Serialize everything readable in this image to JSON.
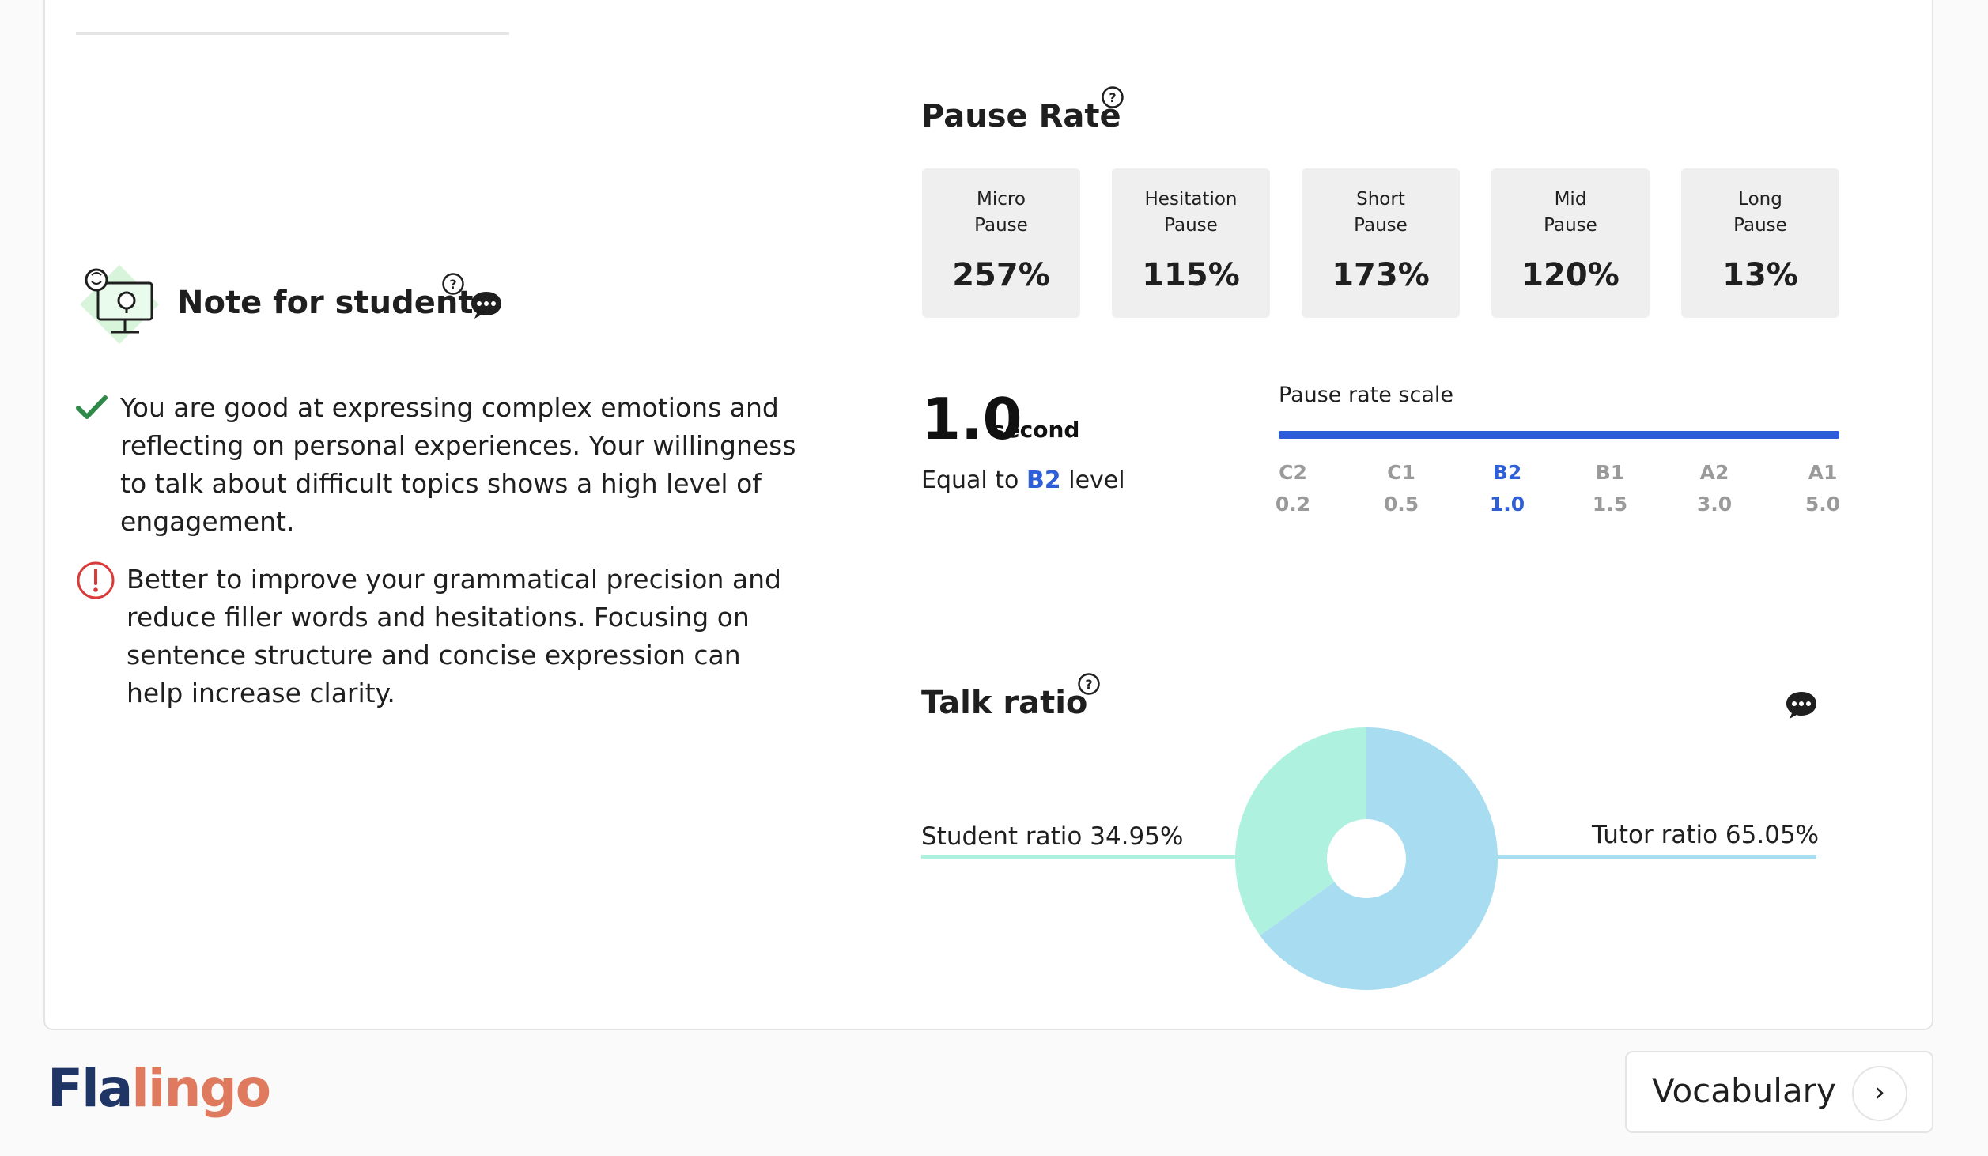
{
  "note": {
    "title": "Note for student",
    "items": [
      {
        "type": "positive",
        "icon": "check-icon",
        "text": "You are good at expressing complex emotions and reflecting on personal experiences. Your willingness to talk about difficult topics shows a high level of engagement."
      },
      {
        "type": "improvement",
        "icon": "alert-icon",
        "text": "Better to improve your grammatical precision and reduce filler words and hesitations. Focusing on sentence structure and concise expression can help increase clarity."
      }
    ]
  },
  "pause_rate": {
    "title": "Pause Rate",
    "boxes": [
      {
        "label": "Micro\nPause",
        "value": "257%"
      },
      {
        "label": "Hesitation\nPause",
        "value": "115%"
      },
      {
        "label": "Short\nPause",
        "value": "173%"
      },
      {
        "label": "Mid\nPause",
        "value": "120%"
      },
      {
        "label": "Long\nPause",
        "value": "13%"
      }
    ],
    "seconds_value": "1.0",
    "seconds_unit": "second",
    "equal_prefix": "Equal to",
    "equal_level": "B2",
    "equal_suffix": "level",
    "scale_label": "Pause rate scale",
    "scale": [
      {
        "level": "C2",
        "value": "0.2"
      },
      {
        "level": "C1",
        "value": "0.5"
      },
      {
        "level": "B2",
        "value": "1.0",
        "active": true
      },
      {
        "level": "B1",
        "value": "1.5"
      },
      {
        "level": "A2",
        "value": "3.0"
      },
      {
        "level": "A1",
        "value": "5.0"
      }
    ]
  },
  "talk_ratio": {
    "title": "Talk ratio",
    "student_label": "Student ratio 34.95%",
    "tutor_label": "Tutor ratio 65.05%",
    "student_pct": 34.95,
    "tutor_pct": 65.05,
    "colors": {
      "student": "#aef1df",
      "tutor": "#a8dcf1"
    }
  },
  "footer": {
    "logo_part1": "Fla",
    "logo_part2": "lingo",
    "next_button": "Vocabulary",
    "next_arrow": "›"
  },
  "colors": {
    "accent_blue": "#2e5bd8",
    "check_green": "#2f8a4a",
    "alert_red": "#d93a3a"
  }
}
